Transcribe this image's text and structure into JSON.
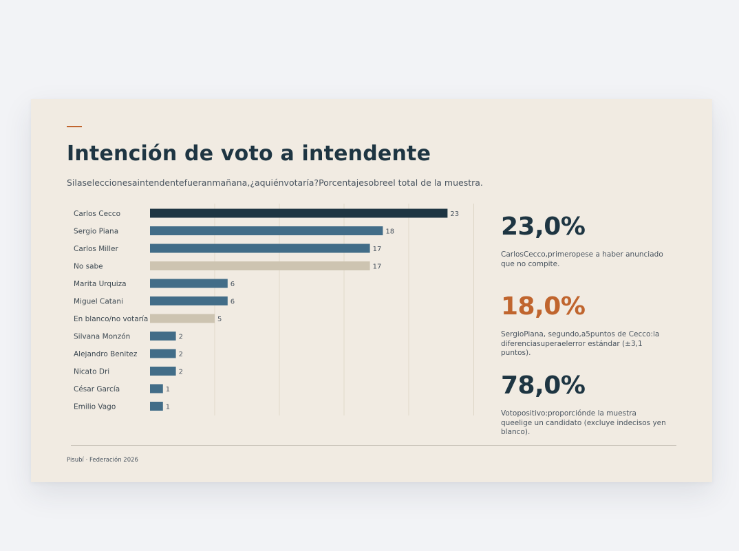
{
  "header": {
    "title": "Intención de voto a intendente",
    "subtitle": "Silaseleccionesaintendentefueranmañana,¿aquiénvotaría?Porcentajesobreel total de la muestra."
  },
  "chart_data": {
    "type": "bar",
    "orientation": "horizontal",
    "categories": [
      "Carlos Cecco",
      "Sergio Piana",
      "Carlos Miller",
      "No sabe",
      "Marita Urquiza",
      "Miguel Catani",
      "En blanco/no votaría",
      "Silvana Monzón",
      "Alejandro Benitez",
      "Nicato Dri",
      "César García",
      "Emilio Vago"
    ],
    "values": [
      23,
      18,
      17,
      17,
      6,
      6,
      5,
      2,
      2,
      2,
      1,
      1
    ],
    "value_labels": [
      "23",
      "18",
      "17",
      "17",
      "6",
      "6",
      "5",
      "2",
      "2",
      "2",
      "1",
      "1"
    ],
    "bar_colors": [
      "#1e3542",
      "#426d88",
      "#426d88",
      "#cdc4b1",
      "#426d88",
      "#426d88",
      "#cdc4b1",
      "#426d88",
      "#426d88",
      "#426d88",
      "#426d88",
      "#426d88"
    ],
    "xlim": [
      0,
      25
    ],
    "grid": true
  },
  "stats": [
    {
      "value": "23,0%",
      "color": "#1e3542",
      "description": "CarlosCecco,primeropese a haber anunciado que no compite."
    },
    {
      "value": "18,0%",
      "color": "#c0652e",
      "description": "SergioPiana, segundo,a5puntos de Cecco:la diferenciasuperaelerror estándar (±3,1 puntos)."
    },
    {
      "value": "78,0%",
      "color": "#1e3542",
      "description": "Votopositivo:proporciónde la muestra queelige un candidato (excluye indecisos yen blanco)."
    }
  ],
  "footer": {
    "source": "Pisubí · Federación 2026"
  },
  "colors": {
    "accent": "#c0652e",
    "navy": "#1e3542",
    "steel": "#426d88",
    "sand": "#cdc4b1",
    "card_background": "#f1ebe2"
  }
}
